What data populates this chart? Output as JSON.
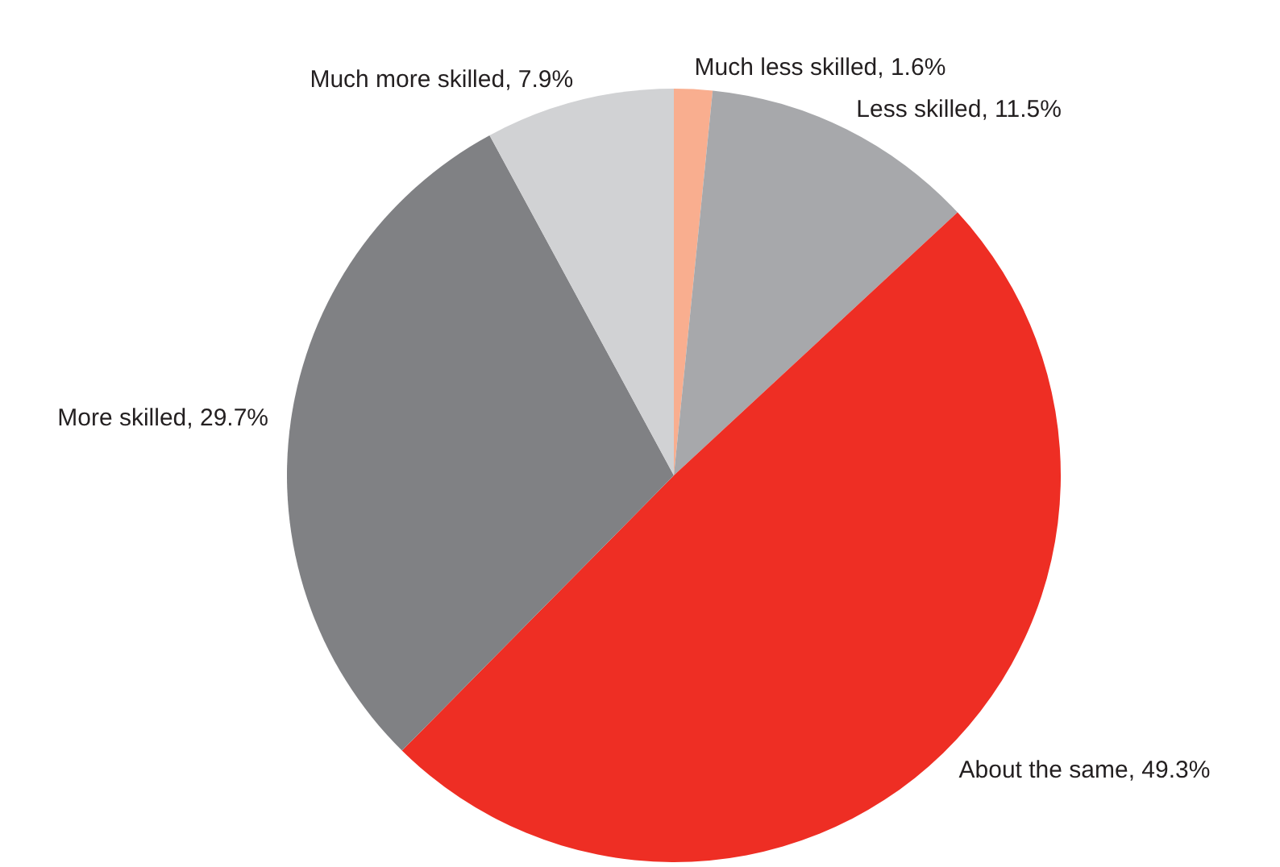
{
  "chart_data": {
    "type": "pie",
    "categories": [
      "Much less skilled",
      "Less skilled",
      "About the same",
      "More skilled",
      "Much more skilled"
    ],
    "values": [
      1.6,
      11.5,
      49.3,
      29.7,
      7.9
    ],
    "value_labels": [
      "1.6%",
      "11.5%",
      "49.3%",
      "29.7%",
      "7.9%"
    ],
    "colors": [
      "#f9ae8f",
      "#a7a8ab",
      "#ee2e24",
      "#808184",
      "#d1d2d4"
    ]
  }
}
